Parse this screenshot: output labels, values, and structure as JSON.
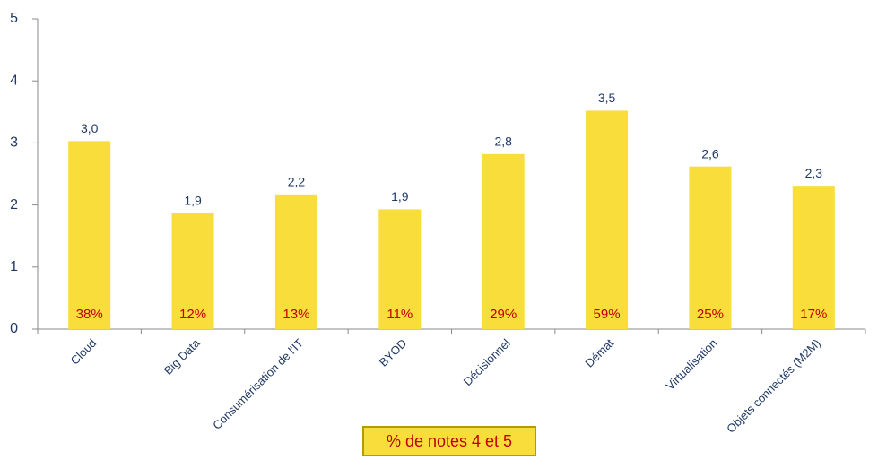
{
  "chart_data": {
    "type": "bar",
    "categories": [
      "Cloud",
      "Big Data",
      "Consumérisation de l'IT",
      "BYOD",
      "Décisionnel",
      "Démat",
      "Virtualisation",
      "Objets connectés (M2M)"
    ],
    "values": [
      3.03,
      1.87,
      2.17,
      1.93,
      2.82,
      3.52,
      2.62,
      2.31
    ],
    "value_labels": [
      "3,0",
      "1,9",
      "2,2",
      "1,9",
      "2,8",
      "3,5",
      "2,6",
      "2,3"
    ],
    "color": "#f9dd3a",
    "ylim": [
      0,
      5
    ],
    "yticks": [
      0,
      1,
      2,
      3,
      4,
      5
    ],
    "grid": false,
    "note_share": {
      "name": "% de notes 4 et 5",
      "color": "#c00000",
      "values": [
        38,
        12,
        13,
        11,
        29,
        59,
        25,
        17
      ],
      "value_labels": [
        "38%",
        "12%",
        "13%",
        "11%",
        "29%",
        "59%",
        "25%",
        "17%"
      ]
    }
  }
}
